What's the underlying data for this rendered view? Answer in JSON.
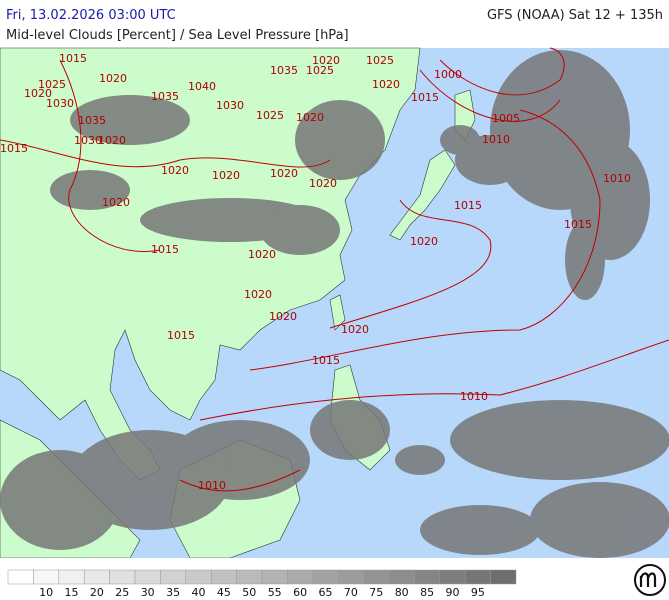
{
  "header": {
    "datetime": "Fri, 13.02.2026 03:00 UTC",
    "model": "GFS (NOAA) Sat 12 + 135h",
    "subtitle": "Mid-level Clouds [Percent] / Sea Level Pressure [hPa]"
  },
  "legend": {
    "labels": [
      "10",
      "15",
      "20",
      "25",
      "30",
      "35",
      "40",
      "45",
      "50",
      "55",
      "60",
      "65",
      "70",
      "75",
      "80",
      "85",
      "90",
      "95"
    ]
  },
  "isobar_labels": [
    "1015",
    "1025",
    "1020",
    "1020",
    "1030",
    "1035",
    "1030",
    "1020",
    "1015",
    "1040",
    "1035",
    "1030",
    "1025",
    "1020",
    "1035",
    "1025",
    "1020",
    "1025",
    "1020",
    "1015",
    "1000",
    "1005",
    "1010",
    "1010",
    "1015",
    "1015",
    "1020",
    "1020",
    "1020",
    "1020",
    "1020",
    "1020",
    "1015",
    "1020",
    "1020",
    "1020",
    "1020",
    "1015",
    "1015",
    "1010",
    "1010"
  ]
}
